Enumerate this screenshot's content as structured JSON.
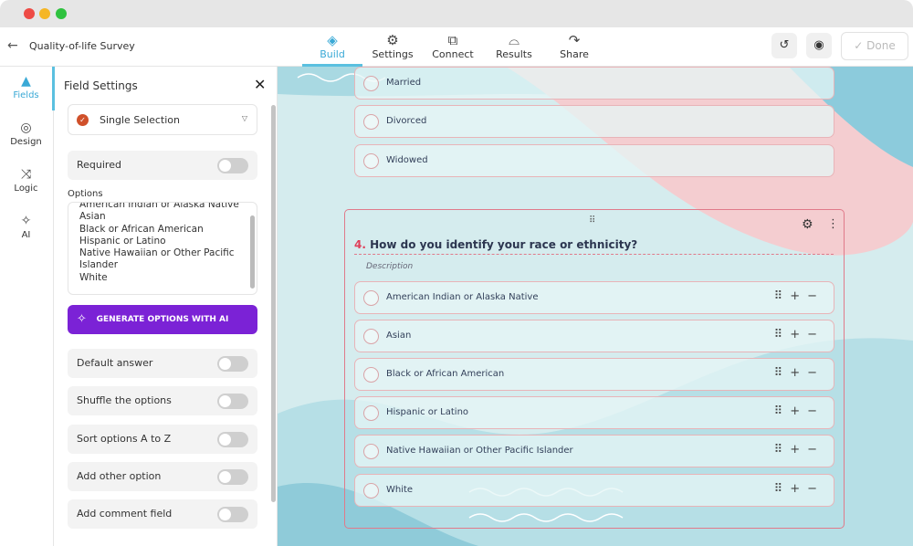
{
  "header": {
    "title": "Quality-of-life Survey",
    "tabs": [
      {
        "label": "Build",
        "icon": "layers-icon"
      },
      {
        "label": "Settings",
        "icon": "gear-icon"
      },
      {
        "label": "Connect",
        "icon": "puzzle-icon"
      },
      {
        "label": "Results",
        "icon": "inbox-icon"
      },
      {
        "label": "Share",
        "icon": "share-icon"
      }
    ],
    "done_label": "Done"
  },
  "rail": [
    {
      "label": "Fields",
      "icon": "shapes-icon"
    },
    {
      "label": "Design",
      "icon": "palette-icon"
    },
    {
      "label": "Logic",
      "icon": "shuffle-icon"
    },
    {
      "label": "AI",
      "icon": "sparkles-icon"
    }
  ],
  "panel": {
    "title": "Field Settings",
    "field_type": "Single Selection",
    "required_label": "Required",
    "options_label": "Options",
    "options_text": [
      "American Indian or Alaska Native",
      "Asian",
      "Black or African American",
      "Hispanic or Latino",
      "Native Hawaiian or Other Pacific",
      "Islander",
      "White"
    ],
    "ai_button": "GENERATE OPTIONS WITH AI",
    "toggles": [
      {
        "label": "Default answer",
        "on": false
      },
      {
        "label": "Shuffle the options",
        "on": false
      },
      {
        "label": "Sort options A to Z",
        "on": false
      },
      {
        "label": "Add other option",
        "on": false
      },
      {
        "label": "Add comment field",
        "on": false
      }
    ]
  },
  "canvas": {
    "prev_options": [
      "Married",
      "Divorced",
      "Widowed"
    ],
    "question": {
      "number": "4.",
      "title": "How do you identify your race or ethnicity?",
      "description": "Description",
      "options": [
        "American Indian or Alaska Native",
        "Asian",
        "Black or African American",
        "Hispanic or Latino",
        "Native Hawaiian or Other Pacific Islander",
        "White"
      ]
    }
  },
  "colors": {
    "accent": "#3aa9d6",
    "ai": "#7b22d6",
    "question_border": "#e07a8a"
  }
}
